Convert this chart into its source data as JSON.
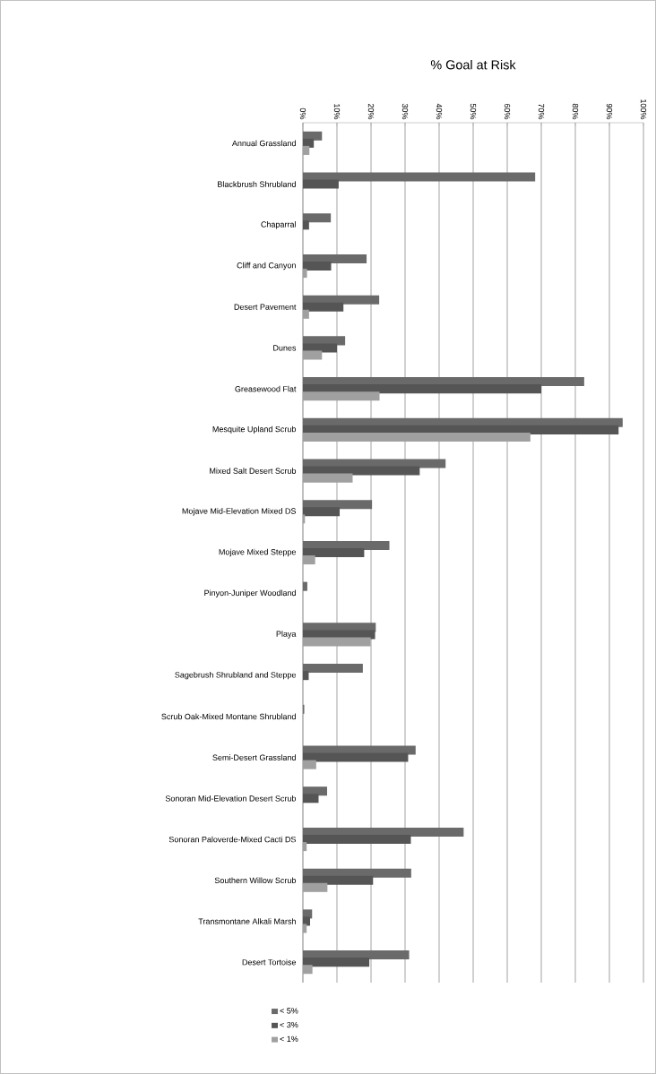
{
  "chart_data": {
    "type": "bar",
    "orientation": "horizontal",
    "title": "% Goal at Risk",
    "categories": [
      "Annual Grassland",
      "Blackbrush Shrubland",
      "Chaparral",
      "Cliff and Canyon",
      "Desert Pavement",
      "Dunes",
      "Greasewood Flat",
      "Mesquite Upland Scrub",
      "Mixed Salt Desert Scrub",
      "Mojave Mid-Elevation Mixed DS",
      "Mojave Mixed Steppe",
      "Pinyon-Juniper Woodland",
      "Playa",
      "Sagebrush Shrubland and Steppe",
      "Scrub Oak-Mixed Montane Shrubland",
      "Semi-Desert Grassland",
      "Sonoran Mid-Elevation Desert Scrub",
      "Sonoran Paloverde-Mixed Cacti DS",
      "Southern Willow Scrub",
      "Transmontane Alkali Marsh",
      "Desert Tortoise"
    ],
    "series": [
      {
        "name": "< 1%",
        "color": "#a0a0a0",
        "values": [
          1.9,
          0,
          0,
          1.2,
          1.8,
          5.6,
          22.5,
          66.8,
          14.6,
          0.6,
          3.6,
          0,
          19.9,
          0,
          0,
          3.9,
          0,
          1.1,
          7.2,
          1.1,
          2.8
        ]
      },
      {
        "name": "< 3%",
        "color": "#555555",
        "values": [
          3.2,
          10.5,
          1.8,
          8.3,
          11.9,
          10.0,
          70.0,
          92.7,
          34.3,
          10.8,
          18.0,
          0,
          21.2,
          1.7,
          0,
          30.9,
          4.6,
          31.7,
          20.6,
          2.1,
          19.5
        ]
      },
      {
        "name": "< 5%",
        "color": "#6a6a6a",
        "values": [
          5.6,
          68.2,
          8.2,
          18.7,
          22.4,
          12.4,
          82.6,
          93.9,
          41.9,
          20.3,
          25.4,
          1.3,
          21.4,
          17.6,
          0.4,
          33.1,
          7.1,
          47.2,
          31.8,
          2.7,
          31.2
        ]
      }
    ],
    "xlim": [
      0,
      100
    ],
    "xticks": [
      {
        "value": 0,
        "label": "0%"
      },
      {
        "value": 10,
        "label": "10%"
      },
      {
        "value": 20,
        "label": "20%"
      },
      {
        "value": 30,
        "label": "30%"
      },
      {
        "value": 40,
        "label": "40%"
      },
      {
        "value": 50,
        "label": "50%"
      },
      {
        "value": 60,
        "label": "60%"
      },
      {
        "value": 70,
        "label": "70%"
      },
      {
        "value": 80,
        "label": "80%"
      },
      {
        "value": 90,
        "label": "90%"
      },
      {
        "value": 100,
        "label": "100%"
      }
    ],
    "grid": "x",
    "legend": "bottom left"
  }
}
